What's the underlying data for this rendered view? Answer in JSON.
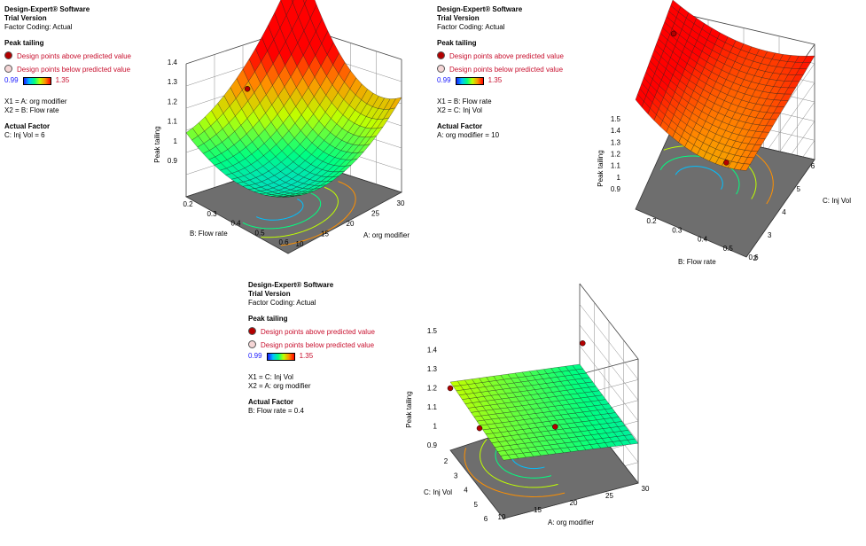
{
  "legend_common": {
    "software": "Design-Expert® Software",
    "trial": "Trial Version",
    "coding": "Factor Coding: Actual",
    "response": "Peak tailing",
    "above": "Design points above predicted value",
    "below": "Design points below predicted value",
    "cmin": "0.99",
    "cmax": "1.35",
    "actual_factor_title": "Actual Factor"
  },
  "colors": {
    "low": "#1a1aff",
    "high": "#ff0000",
    "design_point": "#b30000",
    "floor": "#6e6e6e"
  },
  "chart_data": [
    {
      "type": "surface3d",
      "zlabel": "Peak tailing",
      "xlabel": "A: org modifier",
      "ylabel": "B: Flow rate",
      "x1": "X1 = A: org modifier",
      "x2": "X2 = B: Flow rate",
      "actual": "C: Inj Vol = 6",
      "xticks": [
        "10",
        "15",
        "20",
        "25",
        "30"
      ],
      "yticks": [
        "0.2",
        "0.3",
        "0.4",
        "0.5",
        "0.6"
      ],
      "zticks": [
        "0.9",
        "1",
        "1.1",
        "1.2",
        "1.3",
        "1.4"
      ],
      "zlim": [
        0.9,
        1.4
      ],
      "xlim": [
        10,
        30
      ],
      "ylim": [
        0.2,
        0.6
      ]
    },
    {
      "type": "surface3d",
      "zlabel": "Peak tailing",
      "xlabel": "B: Flow rate",
      "ylabel": "C: Inj Vol",
      "x1": "X1 = B: Flow rate",
      "x2": "X2 = C: Inj Vol",
      "actual": "A: org modifier = 10",
      "xticks": [
        "0.2",
        "0.3",
        "0.4",
        "0.5",
        "0.6"
      ],
      "yticks": [
        "2",
        "3",
        "4",
        "5",
        "6"
      ],
      "zticks": [
        "0.9",
        "1",
        "1.1",
        "1.2",
        "1.3",
        "1.4",
        "1.5"
      ],
      "zlim": [
        0.9,
        1.5
      ],
      "xlim": [
        0.2,
        0.6
      ],
      "ylim": [
        2,
        6
      ]
    },
    {
      "type": "surface3d",
      "zlabel": "Peak tailing",
      "xlabel": "A: org modifier",
      "ylabel": "C: Inj Vol",
      "x1": "X1 = C: Inj Vol",
      "x2": "X2 = A: org modifier",
      "actual": "B: Flow rate = 0.4",
      "xticks": [
        "10",
        "15",
        "20",
        "25",
        "30"
      ],
      "yticks": [
        "2",
        "3",
        "4",
        "5",
        "6"
      ],
      "zticks": [
        "0.9",
        "1",
        "1.1",
        "1.2",
        "1.3",
        "1.4",
        "1.5"
      ],
      "zlim": [
        0.9,
        1.5
      ],
      "xlim": [
        10,
        30
      ],
      "ylim": [
        2,
        6
      ]
    }
  ]
}
